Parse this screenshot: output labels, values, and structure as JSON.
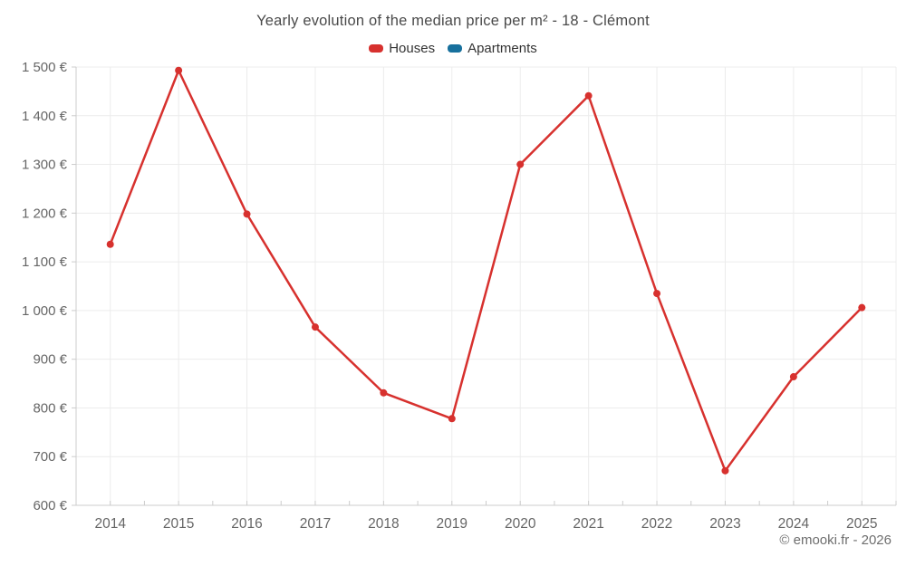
{
  "title": "Yearly evolution of the median price per m² - 18 - Clémont",
  "legend": {
    "items": [
      {
        "label": "Houses",
        "color": "#d7312e"
      },
      {
        "label": "Apartments",
        "color": "#17709d"
      }
    ]
  },
  "footer": {
    "credit": "© emooki.fr - 2026"
  },
  "colors": {
    "background": "#ffffff",
    "grid": "#ececec",
    "axis": "#cccccc",
    "tick_label": "#666666",
    "title_text": "#4a4a4a",
    "legend_text": "#333333",
    "footer_text": "#6e6e6e"
  },
  "chart_data": {
    "type": "line",
    "categories": [
      "2014",
      "2015",
      "2016",
      "2017",
      "2018",
      "2019",
      "2020",
      "2021",
      "2022",
      "2023",
      "2024",
      "2025"
    ],
    "series": [
      {
        "name": "Houses",
        "color": "#d7312e",
        "values": [
          1136,
          1493,
          1198,
          966,
          831,
          778,
          1300,
          1441,
          1035,
          671,
          864,
          1006
        ]
      },
      {
        "name": "Apartments",
        "color": "#17709d",
        "values": []
      }
    ],
    "title": "Yearly evolution of the median price per m² - 18 - Clémont",
    "xlabel": "",
    "ylabel": "",
    "ylim": [
      600,
      1500
    ],
    "ytick_step": 100,
    "ytick_suffix": " €",
    "grid": true,
    "legend_position": "top",
    "marker_radius": 4,
    "line_width": 2.5
  }
}
